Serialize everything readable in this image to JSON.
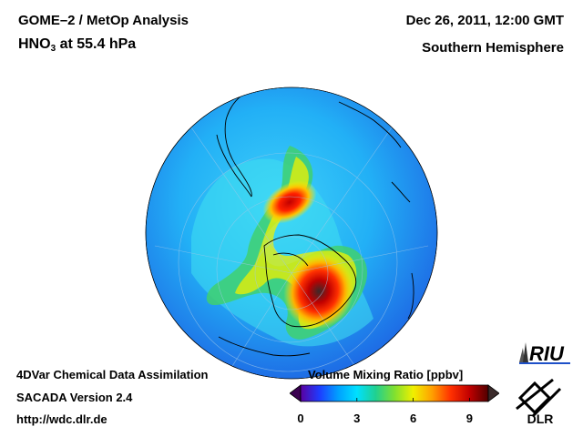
{
  "header": {
    "title": "GOME–2 / MetOp Analysis",
    "species": "HNO",
    "species_sub": "3",
    "level": "at 55.4 hPa",
    "datetime": "Dec 26, 2011, 12:00 GMT",
    "region": "Southern Hemisphere"
  },
  "footer": {
    "line1": "4DVar Chemical Data Assimilation",
    "line2": "SACADA Version 2.4",
    "line3": "http://wdc.dlr.de"
  },
  "colorbar": {
    "title": "Volume Mixing Ratio [ppbv]",
    "min": 0,
    "max": 10,
    "ticks": [
      "0",
      "3",
      "6",
      "9"
    ],
    "tick_values": [
      0,
      3,
      6,
      9
    ],
    "colors": [
      "#5a00a0",
      "#1e3cff",
      "#00a0ff",
      "#00e0ff",
      "#20d090",
      "#80e030",
      "#f0f000",
      "#ffa000",
      "#ff3000",
      "#c00000",
      "#500000"
    ]
  },
  "logos": {
    "riu": "RIU",
    "dlr": "DLR"
  },
  "map": {
    "projection": "orthographic",
    "hemisphere": "south",
    "background_color": "#2fa0f0",
    "land_outline_color": "#000000"
  }
}
